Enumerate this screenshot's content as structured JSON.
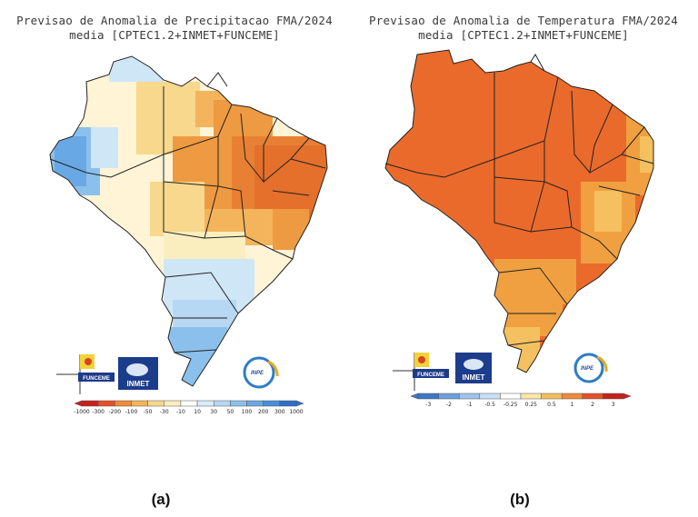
{
  "panels": [
    {
      "id": "a",
      "title_line1": "Previsao de Anomalia de Precipitacao FMA/2024",
      "title_line2": "media [CPTEC1.2+INMET+FUNCEME]",
      "caption": "(a)",
      "legend_labels": [
        "-1000",
        "-300",
        "-200",
        "-100",
        "-50",
        "-30",
        "-10",
        "10",
        "30",
        "50",
        "100",
        "200",
        "300",
        "1000"
      ],
      "legend_colors": [
        "#c8201b",
        "#e4502a",
        "#ee8a3a",
        "#f3b45c",
        "#f7d88c",
        "#fbeebe",
        "#ffffff",
        "#d8ecf8",
        "#b6d8f2",
        "#8cc0ec",
        "#68a8e4",
        "#4a8ed8",
        "#2e70c6"
      ],
      "logos": [
        "FUNCEME",
        "INMET",
        "INPE"
      ]
    },
    {
      "id": "b",
      "title_line1": "Previsao de Anomalia de Temperatura FMA/2024",
      "title_line2": "media [CPTEC1.2+INMET+FUNCEME]",
      "caption": "(b)",
      "legend_labels": [
        "-3",
        "-2",
        "-1",
        "-0.5",
        "-0.25",
        "0.25",
        "0.5",
        "1",
        "2",
        "3"
      ],
      "legend_colors": [
        "#3a78c8",
        "#6aa0dc",
        "#9cc4ec",
        "#c8e0f6",
        "#ffffff",
        "#fbe6a8",
        "#f3be5c",
        "#ee8a3a",
        "#e4502a",
        "#c8201b"
      ],
      "logos": [
        "FUNCEME",
        "INMET",
        "INPE"
      ]
    }
  ],
  "colors": {
    "brazil_fill_temp": "#ea6a2c",
    "temp_warm_patch": "#f0a040",
    "temp_mild_patch": "#f5c060",
    "precip_dry": "#ee9a42",
    "precip_slight_dry": "#f7d88c",
    "precip_neutral": "#fff4d6",
    "precip_wet": "#8cc0ec",
    "precip_slight_wet": "#cfe6f6",
    "border": "#222222"
  }
}
